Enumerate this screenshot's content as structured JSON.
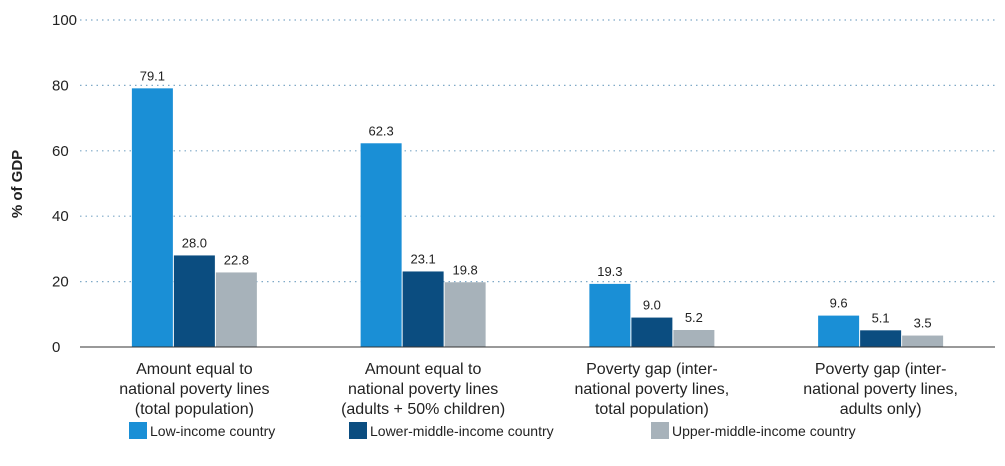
{
  "chart_data": {
    "type": "bar",
    "title": "",
    "xlabel": "",
    "ylabel": "% of GDP",
    "ylim": [
      0,
      100
    ],
    "yticks": [
      0,
      20,
      40,
      60,
      80,
      100
    ],
    "grid": "horizontal dotted",
    "legend_position": "bottom",
    "categories": [
      [
        "Amount equal to",
        "national poverty lines",
        "(total population)"
      ],
      [
        "Amount equal to",
        "national poverty lines",
        "(adults + 50% children)"
      ],
      [
        "Poverty gap (inter-",
        "national poverty lines,",
        "total population)"
      ],
      [
        "Poverty gap (inter-",
        "national poverty lines,",
        "adults only)"
      ]
    ],
    "series": [
      {
        "name": "Low-income country",
        "color": "#1a8fd6",
        "values": [
          79.1,
          62.3,
          19.3,
          9.6
        ],
        "labels": [
          "79.1",
          "62.3",
          "19.3",
          "9.6"
        ]
      },
      {
        "name": "Lower-middle-income country",
        "color": "#0b4d80",
        "values": [
          28.0,
          23.1,
          9.0,
          5.1
        ],
        "labels": [
          "28.0",
          "23.1",
          "9.0",
          "5.1"
        ]
      },
      {
        "name": "Upper-middle-income country",
        "color": "#a7b2ba",
        "values": [
          22.8,
          19.8,
          5.2,
          3.5
        ],
        "labels": [
          "22.8",
          "19.8",
          "5.2",
          "3.5"
        ]
      }
    ]
  }
}
